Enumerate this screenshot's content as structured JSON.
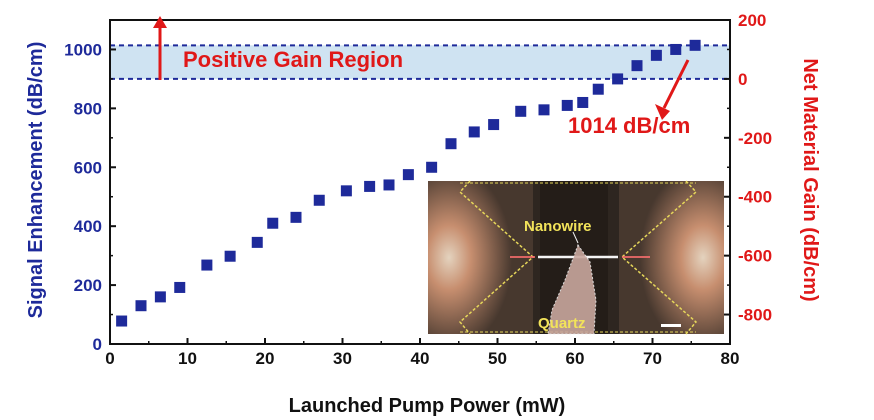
{
  "chart_data": {
    "type": "scatter",
    "xlabel": "Launched Pump Power (mW)",
    "ylabel": "Signal Enhancement (dB/cm)",
    "y2label": "Net Material Gain (dB/cm)",
    "xlim": [
      0,
      80
    ],
    "ylim": [
      0,
      1100
    ],
    "y2lim": [
      -900,
      200
    ],
    "xticks": [
      "0",
      "10",
      "20",
      "30",
      "40",
      "50",
      "60",
      "70",
      "80"
    ],
    "yticks": [
      "0",
      "200",
      "400",
      "600",
      "800",
      "1000"
    ],
    "y2ticks": [
      "200",
      "0",
      "-200",
      "-400",
      "-600",
      "-800"
    ],
    "marker_color": "#1e2a9a",
    "series": [
      {
        "x": [
          1.5,
          4,
          6.5,
          9,
          12.5,
          15.5,
          19,
          21,
          24,
          27,
          30.5,
          33.5,
          36,
          38.5,
          41.5,
          44,
          47,
          49.5,
          53,
          56,
          59,
          61,
          63,
          65.5,
          68,
          70.5,
          73,
          75.5
        ],
        "y": [
          78,
          130,
          160,
          192,
          268,
          298,
          345,
          410,
          430,
          488,
          520,
          535,
          540,
          575,
          600,
          680,
          720,
          745,
          790,
          795,
          810,
          820,
          865,
          900,
          945,
          980,
          1000,
          1014
        ]
      }
    ],
    "gain_region": {
      "y_from": 900,
      "y_to": 1014,
      "fill": "#cfe3f2"
    },
    "annotations": {
      "region_label": "Positive Gain Region",
      "peak_label": "1014 dB/cm"
    },
    "inset": {
      "labels": [
        "Nanowire",
        "Quartz"
      ]
    }
  },
  "colors": {
    "left_axis": "#1e2a9a",
    "right_axis": "#e01818",
    "annotation": "#e01818"
  }
}
